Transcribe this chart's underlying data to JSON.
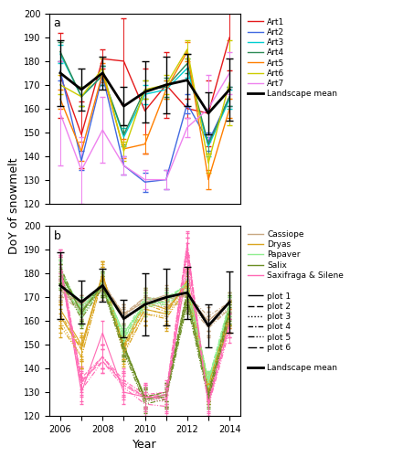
{
  "years": [
    2006,
    2007,
    2008,
    2009,
    2010,
    2011,
    2012,
    2013,
    2014
  ],
  "panel_a": {
    "landscape_mean": [
      175,
      168,
      175,
      161,
      167,
      170,
      172,
      158,
      168
    ],
    "landscape_sd": [
      14,
      9,
      7,
      8,
      13,
      12,
      11,
      9,
      13
    ],
    "series": {
      "Art1": {
        "color": "#e41a1c",
        "mean": [
          174,
          149,
          181,
          180,
          159,
          170,
          160,
          158,
          190
        ],
        "sd": [
          18,
          14,
          4,
          18,
          18,
          14,
          4,
          14,
          14
        ]
      },
      "Art2": {
        "color": "#4169e1",
        "mean": [
          176,
          138,
          174,
          136,
          129,
          130,
          162,
          146,
          165
        ],
        "sd": [
          4,
          4,
          4,
          4,
          4,
          4,
          4,
          4,
          4
        ]
      },
      "Art3": {
        "color": "#00ced1",
        "mean": [
          183,
          165,
          174,
          148,
          166,
          168,
          177,
          144,
          164
        ],
        "sd": [
          4,
          4,
          4,
          4,
          4,
          4,
          4,
          4,
          4
        ]
      },
      "Art4": {
        "color": "#2e8b57",
        "mean": [
          184,
          165,
          174,
          149,
          168,
          169,
          179,
          145,
          165
        ],
        "sd": [
          4,
          4,
          4,
          4,
          4,
          4,
          4,
          4,
          4
        ]
      },
      "Art5": {
        "color": "#ff7f00",
        "mean": [
          164,
          142,
          175,
          143,
          145,
          168,
          184,
          130,
          160
        ],
        "sd": [
          4,
          4,
          4,
          4,
          4,
          4,
          4,
          4,
          4
        ]
      },
      "Art6": {
        "color": "#cccc00",
        "mean": [
          170,
          165,
          177,
          142,
          168,
          170,
          185,
          137,
          171
        ],
        "sd": [
          4,
          4,
          4,
          4,
          4,
          4,
          4,
          4,
          18
        ]
      },
      "Art7": {
        "color": "#ee82ee",
        "mean": [
          158,
          134,
          151,
          136,
          130,
          130,
          152,
          160,
          175
        ],
        "sd": [
          22,
          14,
          14,
          4,
          4,
          4,
          4,
          14,
          9
        ]
      }
    }
  },
  "panel_b": {
    "landscape_mean": [
      175,
      168,
      175,
      161,
      167,
      170,
      172,
      158,
      168
    ],
    "landscape_sd": [
      14,
      9,
      7,
      8,
      13,
      12,
      11,
      9,
      13
    ],
    "species_colors": {
      "Cassiope": "#c8a882",
      "Dryas": "#daa520",
      "Papaver": "#90ee90",
      "Salix": "#6b8e23",
      "Saxifraga_Silene": "#ff69b4"
    },
    "plots": {
      "plot1": {
        "series": {
          "Cassiope": {
            "mean": [
              173,
              165,
              173,
              163,
              168,
              171,
              170,
              160,
              168
            ],
            "sd": [
              4,
              4,
              4,
              4,
              4,
              4,
              4,
              4,
              4
            ]
          },
          "Dryas": {
            "mean": [
              165,
              150,
              179,
              150,
              168,
              165,
              175,
              132,
              163
            ],
            "sd": [
              5,
              5,
              5,
              5,
              5,
              5,
              5,
              5,
              5
            ]
          },
          "Papaver": {
            "mean": [
              180,
              166,
              175,
              155,
              167,
              168,
              176,
              134,
              165
            ],
            "sd": [
              4,
              4,
              4,
              4,
              4,
              4,
              4,
              4,
              4
            ]
          },
          "Salix": {
            "mean": [
              180,
              164,
              174,
              150,
              127,
              129,
              170,
              129,
              165
            ],
            "sd": [
              4,
              4,
              4,
              4,
              4,
              4,
              4,
              4,
              4
            ]
          },
          "Saxifraga_Silene": {
            "mean": [
              183,
              130,
              155,
              130,
              128,
              128,
              183,
              127,
              162
            ],
            "sd": [
              5,
              5,
              5,
              5,
              5,
              5,
              5,
              5,
              5
            ]
          }
        }
      },
      "plot2": {
        "series": {
          "Cassiope": {
            "mean": [
              174,
              167,
              175,
              162,
              170,
              168,
              171,
              158,
              165
            ],
            "sd": [
              4,
              4,
              4,
              4,
              4,
              4,
              4,
              4,
              4
            ]
          },
          "Dryas": {
            "mean": [
              162,
              148,
              180,
              148,
              165,
              163,
              177,
              133,
              162
            ],
            "sd": [
              5,
              5,
              5,
              5,
              5,
              5,
              5,
              5,
              5
            ]
          },
          "Papaver": {
            "mean": [
              181,
              165,
              174,
              152,
              169,
              170,
              175,
              135,
              167
            ],
            "sd": [
              4,
              4,
              4,
              4,
              4,
              4,
              4,
              4,
              4
            ]
          },
          "Salix": {
            "mean": [
              182,
              163,
              176,
              149,
              128,
              130,
              172,
              130,
              166
            ],
            "sd": [
              4,
              4,
              4,
              4,
              4,
              4,
              4,
              4,
              4
            ]
          },
          "Saxifraga_Silene": {
            "mean": [
              185,
              135,
              143,
              134,
              128,
              129,
              192,
              126,
              160
            ],
            "sd": [
              5,
              5,
              5,
              5,
              5,
              5,
              5,
              5,
              5
            ]
          }
        }
      },
      "plot3": {
        "series": {
          "Cassiope": {
            "mean": [
              172,
              165,
              176,
              160,
              168,
              167,
              169,
              158,
              166
            ],
            "sd": [
              4,
              4,
              4,
              4,
              4,
              4,
              4,
              4,
              4
            ]
          },
          "Dryas": {
            "mean": [
              160,
              145,
              178,
              147,
              163,
              162,
              175,
              131,
              160
            ],
            "sd": [
              5,
              5,
              5,
              5,
              5,
              5,
              5,
              5,
              5
            ]
          },
          "Papaver": {
            "mean": [
              179,
              163,
              176,
              153,
              167,
              168,
              174,
              133,
              163
            ],
            "sd": [
              4,
              4,
              4,
              4,
              4,
              4,
              4,
              4,
              4
            ]
          },
          "Salix": {
            "mean": [
              178,
              162,
              175,
              148,
              126,
              128,
              168,
              128,
              163
            ],
            "sd": [
              4,
              4,
              4,
              4,
              4,
              4,
              4,
              4,
              4
            ]
          },
          "Saxifraga_Silene": {
            "mean": [
              184,
              133,
              145,
              133,
              127,
              126,
              190,
              125,
              158
            ],
            "sd": [
              5,
              5,
              5,
              5,
              5,
              5,
              5,
              5,
              5
            ]
          }
        }
      },
      "plot4": {
        "series": {
          "Cassiope": {
            "mean": [
              175,
              164,
              177,
              162,
              169,
              170,
              171,
              162,
              168
            ],
            "sd": [
              4,
              4,
              4,
              4,
              4,
              4,
              4,
              4,
              4
            ]
          },
          "Dryas": {
            "mean": [
              163,
              149,
              180,
              149,
              167,
              164,
              176,
              133,
              163
            ],
            "sd": [
              5,
              5,
              5,
              5,
              5,
              5,
              5,
              5,
              5
            ]
          },
          "Papaver": {
            "mean": [
              182,
              164,
              177,
              154,
              170,
              169,
              176,
              135,
              168
            ],
            "sd": [
              4,
              4,
              4,
              4,
              4,
              4,
              4,
              4,
              4
            ]
          },
          "Salix": {
            "mean": [
              183,
              163,
              177,
              150,
              128,
              130,
              173,
              130,
              167
            ],
            "sd": [
              4,
              4,
              4,
              4,
              4,
              4,
              4,
              4,
              4
            ]
          },
          "Saxifraga_Silene": {
            "mean": [
              185,
              136,
              145,
              135,
              129,
              130,
              193,
              125,
              160
            ],
            "sd": [
              5,
              5,
              5,
              5,
              5,
              5,
              5,
              5,
              5
            ]
          }
        }
      },
      "plot5": {
        "series": {
          "Cassiope": {
            "mean": [
              171,
              164,
              174,
              161,
              167,
              166,
              168,
              157,
              165
            ],
            "sd": [
              4,
              4,
              4,
              4,
              4,
              4,
              4,
              4,
              4
            ]
          },
          "Dryas": {
            "mean": [
              158,
              145,
              178,
              146,
              163,
              161,
              174,
              130,
              160
            ],
            "sd": [
              5,
              5,
              5,
              5,
              5,
              5,
              5,
              5,
              5
            ]
          },
          "Papaver": {
            "mean": [
              178,
              162,
              175,
              151,
              166,
              167,
              173,
              132,
              162
            ],
            "sd": [
              4,
              4,
              4,
              4,
              4,
              4,
              4,
              4,
              4
            ]
          },
          "Salix": {
            "mean": [
              177,
              161,
              174,
              147,
              125,
              127,
              167,
              127,
              162
            ],
            "sd": [
              4,
              4,
              4,
              4,
              4,
              4,
              4,
              4,
              4
            ]
          },
          "Saxifraga_Silene": {
            "mean": [
              182,
              131,
              143,
              132,
              125,
              124,
              188,
              124,
              156
            ],
            "sd": [
              5,
              5,
              5,
              5,
              5,
              5,
              5,
              5,
              5
            ]
          }
        }
      },
      "plot6": {
        "series": {
          "Cassiope": {
            "mean": [
              173,
              167,
              176,
              163,
              170,
              169,
              171,
              160,
              168
            ],
            "sd": [
              4,
              4,
              4,
              4,
              4,
              4,
              4,
              4,
              4
            ]
          },
          "Dryas": {
            "mean": [
              162,
              148,
              180,
              149,
              165,
              163,
              177,
              133,
              163
            ],
            "sd": [
              5,
              5,
              5,
              5,
              5,
              5,
              5,
              5,
              5
            ]
          },
          "Papaver": {
            "mean": [
              180,
              164,
              176,
              153,
              168,
              168,
              176,
              134,
              166
            ],
            "sd": [
              4,
              4,
              4,
              4,
              4,
              4,
              4,
              4,
              4
            ]
          },
          "Salix": {
            "mean": [
              180,
              164,
              175,
              149,
              127,
              128,
              170,
              129,
              164
            ],
            "sd": [
              4,
              4,
              4,
              4,
              4,
              4,
              4,
              4,
              4
            ]
          },
          "Saxifraga_Silene": {
            "mean": [
              183,
              134,
              145,
              133,
              128,
              127,
              190,
              125,
              158
            ],
            "sd": [
              5,
              5,
              5,
              5,
              5,
              5,
              5,
              5,
              5
            ]
          }
        }
      }
    }
  },
  "ylim_a": [
    120,
    200
  ],
  "ylim_b": [
    120,
    200
  ],
  "yticks": [
    120,
    130,
    140,
    150,
    160,
    170,
    180,
    190,
    200
  ],
  "xlabel": "Year",
  "ylabel": "DoY of snowmelt",
  "figsize": [
    4.53,
    5.0
  ],
  "dpi": 100
}
